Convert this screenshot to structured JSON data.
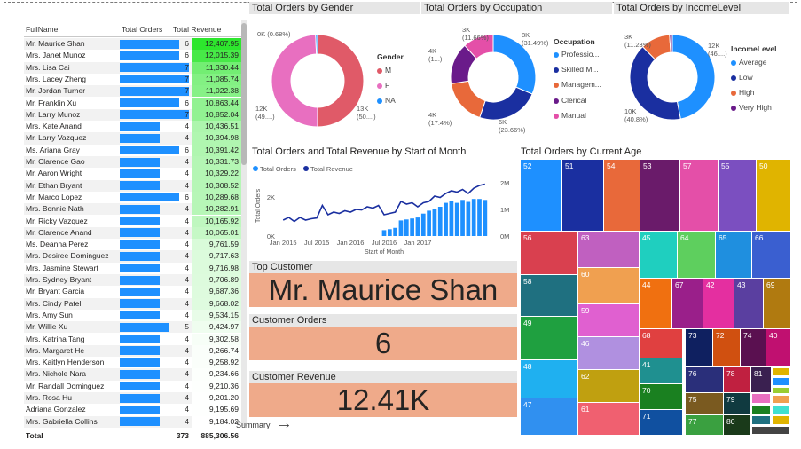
{
  "table": {
    "headers": {
      "name": "FullName",
      "orders": "Total Orders",
      "revenue": "Total Revenue"
    },
    "rows": [
      {
        "name": "Mr. Maurice Shan",
        "orders": 6,
        "revenue": "12,407.95",
        "revenue_num": 12407.95
      },
      {
        "name": "Mrs. Janet Munoz",
        "orders": 6,
        "revenue": "12,015.39",
        "revenue_num": 12015.39
      },
      {
        "name": "Mrs. Lisa Cai",
        "orders": 7,
        "revenue": "11,330.44",
        "revenue_num": 11330.44
      },
      {
        "name": "Mrs. Lacey Zheng",
        "orders": 7,
        "revenue": "11,085.74",
        "revenue_num": 11085.74
      },
      {
        "name": "Mr. Jordan Turner",
        "orders": 7,
        "revenue": "11,022.38",
        "revenue_num": 11022.38
      },
      {
        "name": "Mr. Franklin Xu",
        "orders": 6,
        "revenue": "10,863.44",
        "revenue_num": 10863.44
      },
      {
        "name": "Mr. Larry Munoz",
        "orders": 7,
        "revenue": "10,852.04",
        "revenue_num": 10852.04
      },
      {
        "name": "Mrs. Kate Anand",
        "orders": 4,
        "revenue": "10,436.51",
        "revenue_num": 10436.51
      },
      {
        "name": "Mr. Larry Vazquez",
        "orders": 4,
        "revenue": "10,394.98",
        "revenue_num": 10394.98
      },
      {
        "name": "Ms. Ariana Gray",
        "orders": 6,
        "revenue": "10,391.42",
        "revenue_num": 10391.42
      },
      {
        "name": "Mr. Clarence Gao",
        "orders": 4,
        "revenue": "10,331.73",
        "revenue_num": 10331.73
      },
      {
        "name": "Mr. Aaron Wright",
        "orders": 4,
        "revenue": "10,329.22",
        "revenue_num": 10329.22
      },
      {
        "name": "Mr. Ethan Bryant",
        "orders": 4,
        "revenue": "10,308.52",
        "revenue_num": 10308.52
      },
      {
        "name": "Mr. Marco Lopez",
        "orders": 6,
        "revenue": "10,289.68",
        "revenue_num": 10289.68
      },
      {
        "name": "Mrs. Bonnie Nath",
        "orders": 4,
        "revenue": "10,282.91",
        "revenue_num": 10282.91
      },
      {
        "name": "Mr. Ricky Vazquez",
        "orders": 4,
        "revenue": "10,165.92",
        "revenue_num": 10165.92
      },
      {
        "name": "Mr. Clarence Anand",
        "orders": 4,
        "revenue": "10,065.01",
        "revenue_num": 10065.01
      },
      {
        "name": "Ms. Deanna Perez",
        "orders": 4,
        "revenue": "9,761.59",
        "revenue_num": 9761.59
      },
      {
        "name": "Mrs. Desiree Dominguez",
        "orders": 4,
        "revenue": "9,717.63",
        "revenue_num": 9717.63
      },
      {
        "name": "Mrs. Jasmine Stewart",
        "orders": 4,
        "revenue": "9,716.98",
        "revenue_num": 9716.98
      },
      {
        "name": "Mrs. Sydney Bryant",
        "orders": 4,
        "revenue": "9,706.89",
        "revenue_num": 9706.89
      },
      {
        "name": "Mr. Bryant Garcia",
        "orders": 4,
        "revenue": "9,687.36",
        "revenue_num": 9687.36
      },
      {
        "name": "Mrs. Cindy Patel",
        "orders": 4,
        "revenue": "9,668.02",
        "revenue_num": 9668.02
      },
      {
        "name": "Mrs. Amy Sun",
        "orders": 4,
        "revenue": "9,534.15",
        "revenue_num": 9534.15
      },
      {
        "name": "Mr. Willie Xu",
        "orders": 5,
        "revenue": "9,424.97",
        "revenue_num": 9424.97
      },
      {
        "name": "Mrs. Katrina Tang",
        "orders": 4,
        "revenue": "9,302.58",
        "revenue_num": 9302.58
      },
      {
        "name": "Mrs. Margaret He",
        "orders": 4,
        "revenue": "9,266.74",
        "revenue_num": 9266.74
      },
      {
        "name": "Mrs. Kaitlyn Henderson",
        "orders": 4,
        "revenue": "9,258.92",
        "revenue_num": 9258.92
      },
      {
        "name": "Mrs. Nichole Nara",
        "orders": 4,
        "revenue": "9,234.66",
        "revenue_num": 9234.66
      },
      {
        "name": "Mr. Randall Dominguez",
        "orders": 4,
        "revenue": "9,210.36",
        "revenue_num": 9210.36
      },
      {
        "name": "Mrs. Rosa Hu",
        "orders": 4,
        "revenue": "9,201.20",
        "revenue_num": 9201.2
      },
      {
        "name": "Adriana Gonzalez",
        "orders": 4,
        "revenue": "9,195.69",
        "revenue_num": 9195.69
      },
      {
        "name": "Mrs. Gabriella Collins",
        "orders": 4,
        "revenue": "9,184.02",
        "revenue_num": 9184.02
      }
    ],
    "total": {
      "label": "Total",
      "orders": "373",
      "revenue": "885,306.56"
    }
  },
  "gender_chart": {
    "title": "Total Orders by Gender",
    "legend_title": "Gender",
    "slices": [
      {
        "name": "M",
        "value": 50.0,
        "label": "13K\n(50....)",
        "color": "#e05a68"
      },
      {
        "name": "F",
        "value": 49.32,
        "label": "12K\n(49....)",
        "color": "#e86fc0"
      },
      {
        "name": "NA",
        "value": 0.68,
        "label": "0K (0.68%)",
        "color": "#1e90ff"
      }
    ]
  },
  "occupation_chart": {
    "title": "Total Orders by Occupation",
    "legend_title": "Occupation",
    "slices": [
      {
        "name": "Professio...",
        "value": 31.49,
        "label": "8K\n(31.49%)",
        "color": "#1e90ff"
      },
      {
        "name": "Skilled M...",
        "value": 23.66,
        "label": "6K\n(23.66%)",
        "color": "#1a2fa0"
      },
      {
        "name": "Managem...",
        "value": 17.4,
        "label": "4K\n(17.4%)",
        "color": "#e8693a"
      },
      {
        "name": "Clerical",
        "value": 15.79,
        "label": "4K\n(1...)",
        "color": "#6a1b8a"
      },
      {
        "name": "Manual",
        "value": 11.66,
        "label": "3K\n(11.66%)",
        "color": "#e44fa8"
      }
    ]
  },
  "income_chart": {
    "title": "Total Orders by IncomeLevel",
    "legend_title": "IncomeLevel",
    "slices": [
      {
        "name": "Average",
        "value": 46.9,
        "label": "12K\n(46....)",
        "color": "#1e90ff"
      },
      {
        "name": "Low",
        "value": 40.8,
        "label": "10K\n(40.8%)",
        "color": "#1a2fa0"
      },
      {
        "name": "High",
        "value": 11.23,
        "label": "3K\n(11.23%)",
        "color": "#e8693a"
      },
      {
        "name": "Very High",
        "value": 1.07,
        "label": "",
        "color": "#6a1b8a"
      }
    ]
  },
  "chart_data": {
    "type": "bar",
    "title": "Total Orders and Total Revenue by Start of Month",
    "xlabel": "Start of Month",
    "ylabel": "Total Orders",
    "legend": [
      "Total Orders",
      "Total Revenue"
    ],
    "x_ticks": [
      "Jan 2015",
      "Jul 2015",
      "Jan 2016",
      "Jul 2016",
      "Jan 2017"
    ],
    "y_ticks_left": [
      "0K",
      "2K"
    ],
    "y_ticks_right": [
      "0M",
      "1M",
      "2M"
    ],
    "ylim_left": [
      0,
      3000
    ],
    "ylim_right": [
      0,
      2200000
    ],
    "orders": [
      0,
      0,
      0,
      0,
      0,
      0,
      0,
      0,
      0,
      0,
      0,
      0,
      0,
      0,
      0,
      0,
      0,
      0,
      300,
      350,
      420,
      800,
      850,
      900,
      950,
      1150,
      1300,
      1400,
      1500,
      1700,
      1800,
      1700,
      1850,
      1750,
      1900,
      1900,
      1850
    ],
    "revenue": [
      600000,
      700000,
      550000,
      700000,
      600000,
      650000,
      680000,
      1150000,
      800000,
      900000,
      850000,
      950000,
      900000,
      1000000,
      980000,
      1100000,
      1050000,
      1150000,
      800000,
      850000,
      900000,
      1300000,
      1200000,
      1250000,
      1100000,
      1250000,
      1300000,
      1500000,
      1450000,
      1600000,
      1700000,
      1650000,
      1750000,
      1600000,
      1800000,
      1900000,
      1950000
    ]
  },
  "treemap": {
    "title": "Total Orders by Current Age",
    "cells": [
      {
        "label": "52",
        "color": "#1e90ff"
      },
      {
        "label": "51",
        "color": "#1a2fa0"
      },
      {
        "label": "54",
        "color": "#e8693a"
      },
      {
        "label": "53",
        "color": "#6a1b6a"
      },
      {
        "label": "57",
        "color": "#e44fa8"
      },
      {
        "label": "55",
        "color": "#7b4fc0"
      },
      {
        "label": "50",
        "color": "#e0b400"
      },
      {
        "label": "56",
        "color": "#d9404f"
      },
      {
        "label": "63",
        "color": "#c060c0"
      },
      {
        "label": "45",
        "color": "#1fcfbf"
      },
      {
        "label": "64",
        "color": "#5ecf5e"
      },
      {
        "label": "65",
        "color": "#1f8fdf"
      },
      {
        "label": "66",
        "color": "#3a5fd0"
      },
      {
        "label": "58",
        "color": "#1f7080"
      },
      {
        "label": "60",
        "color": "#f0a050"
      },
      {
        "label": "44",
        "color": "#f07010"
      },
      {
        "label": "67",
        "color": "#9a1f8a"
      },
      {
        "label": "42",
        "color": "#e42fa0"
      },
      {
        "label": "43",
        "color": "#5a3fa0"
      },
      {
        "label": "69",
        "color": "#b07a10"
      },
      {
        "label": "59",
        "color": "#e060d0"
      },
      {
        "label": "49",
        "color": "#1fa040"
      },
      {
        "label": "46",
        "color": "#b090e0"
      },
      {
        "label": "68",
        "color": "#e04040"
      },
      {
        "label": "73",
        "color": "#0f2060"
      },
      {
        "label": "72",
        "color": "#d05010"
      },
      {
        "label": "74",
        "color": "#5a1050"
      },
      {
        "label": "40",
        "color": "#c01070"
      },
      {
        "label": "48",
        "color": "#1fb0f0"
      },
      {
        "label": "62",
        "color": "#c0a010"
      },
      {
        "label": "41",
        "color": "#1f9090"
      },
      {
        "label": "76",
        "color": "#2a2f7a"
      },
      {
        "label": "78",
        "color": "#c02040"
      },
      {
        "label": "81",
        "color": "#3a2050"
      },
      {
        "label": "70",
        "color": "#1a8020"
      },
      {
        "label": "75",
        "color": "#7a5a20"
      },
      {
        "label": "79",
        "color": "#103a40"
      },
      {
        "label": "47",
        "color": "#3090f0"
      },
      {
        "label": "61",
        "color": "#f06070"
      },
      {
        "label": "71",
        "color": "#1050a0"
      },
      {
        "label": "77",
        "color": "#3aa040"
      },
      {
        "label": "80",
        "color": "#1a3a1a"
      }
    ]
  },
  "cards": {
    "top_customer_label": "Top Customer",
    "top_customer_value": "Mr. Maurice Shan",
    "orders_label": "Customer Orders",
    "orders_value": "6",
    "revenue_label": "Customer Revenue",
    "revenue_value": "12.41K"
  },
  "nav": {
    "summary_label": "Summary",
    "arrow": "→"
  }
}
